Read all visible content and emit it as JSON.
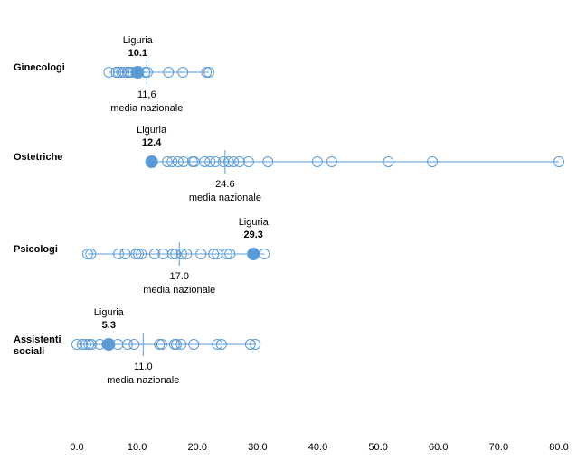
{
  "chart_data": {
    "type": "scatter",
    "xlim": [
      0,
      80
    ],
    "xticks": [
      "0.0",
      "10.0",
      "20.0",
      "30.0",
      "40.0",
      "50.0",
      "60.0",
      "70.0",
      "80.0"
    ],
    "highlight_label": "Liguria",
    "mean_label": "media nazionale",
    "colors": {
      "line": "#5b9bd5",
      "marker": "#5b9bd5"
    },
    "rows": [
      {
        "name": "Ginecologi",
        "name_lines": [
          "Ginecologi"
        ],
        "liguria": 10.1,
        "liguria_label": "10.1",
        "mean": 11.6,
        "mean_label": "11,6",
        "values": [
          5.3,
          6.5,
          6.9,
          7.4,
          7.8,
          8.4,
          8.7,
          9.2,
          9.8,
          11.3,
          11.7,
          15.2,
          17.6,
          21.5,
          21.9
        ]
      },
      {
        "name": "Ostetriche",
        "name_lines": [
          "Ostetriche"
        ],
        "liguria": 12.4,
        "liguria_label": "12.4",
        "mean": 24.6,
        "mean_label": "24.6",
        "values": [
          15.0,
          15.8,
          16.8,
          17.7,
          19.2,
          19.5,
          21.2,
          22.1,
          23.0,
          24.3,
          25.2,
          26.0,
          27.0,
          28.5,
          31.7,
          39.9,
          42.3,
          51.7,
          59.0,
          80.0
        ]
      },
      {
        "name": "Psicologi",
        "name_lines": [
          "Psicologi"
        ],
        "liguria": 29.3,
        "liguria_label": "29.3",
        "mean": 17.0,
        "mean_label": "17.0",
        "values": [
          1.8,
          2.3,
          6.9,
          8.0,
          9.8,
          10.2,
          10.7,
          12.9,
          14.3,
          15.9,
          16.4,
          17.4,
          18.2,
          20.6,
          22.7,
          23.3,
          24.9,
          25.4,
          31.1
        ]
      },
      {
        "name": "Assistenti sociali",
        "name_lines": [
          "Assistenti",
          "sociali"
        ],
        "liguria": 5.3,
        "liguria_label": "5.3",
        "mean": 11.0,
        "mean_label": "11.0",
        "values": [
          0,
          0.9,
          1.5,
          2.0,
          2.4,
          3.8,
          5.0,
          6.8,
          8.4,
          9.5,
          13.7,
          14.1,
          16.2,
          16.5,
          17.3,
          19.4,
          23.3,
          24.0,
          28.8,
          29.6
        ]
      }
    ]
  }
}
